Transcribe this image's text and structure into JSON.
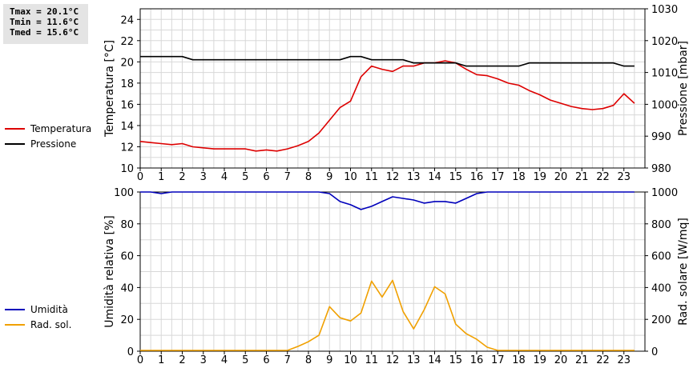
{
  "stats": {
    "tmax": "Tmax = 20.1°C",
    "tmin": "Tmin = 11.6°C",
    "tmed": "Tmed = 15.6°C"
  },
  "colors": {
    "temperature": "#dd0000",
    "pressure": "#000000",
    "humidity": "#0000bb",
    "radiation": "#f0a000",
    "grid": "#d8d8d8"
  },
  "chart_data": [
    {
      "type": "line",
      "ylabel": "Temperatura [°C]",
      "y2label": "Pressione [mbar]",
      "xlim": [
        0,
        24
      ],
      "xticks": [
        0,
        1,
        2,
        3,
        4,
        5,
        6,
        7,
        8,
        9,
        10,
        11,
        12,
        13,
        14,
        15,
        16,
        17,
        18,
        19,
        20,
        21,
        22,
        23
      ],
      "ylim": [
        10,
        25
      ],
      "yticks": [
        10,
        12,
        14,
        16,
        18,
        20,
        22,
        24
      ],
      "y2lim": [
        980,
        1030
      ],
      "y2ticks": [
        980,
        990,
        1000,
        1010,
        1020,
        1030
      ],
      "grid": true,
      "legend_position": "left",
      "series": [
        {
          "name": "Temperatura",
          "axis": "left",
          "x": [
            0,
            0.5,
            1,
            1.5,
            2,
            2.5,
            3,
            3.5,
            4,
            4.5,
            5,
            5.5,
            6,
            6.5,
            7,
            7.5,
            8,
            8.5,
            9,
            9.5,
            10,
            10.5,
            11,
            11.5,
            12,
            12.5,
            13,
            13.5,
            14,
            14.5,
            15,
            15.5,
            16,
            16.5,
            17,
            17.5,
            18,
            18.5,
            19,
            19.5,
            20,
            20.5,
            21,
            21.5,
            22,
            22.5,
            23,
            23.5
          ],
          "y": [
            12.5,
            12.4,
            12.3,
            12.2,
            12.3,
            12.0,
            11.9,
            11.8,
            11.8,
            11.8,
            11.8,
            11.6,
            11.7,
            11.6,
            11.8,
            12.1,
            12.5,
            13.3,
            14.5,
            15.7,
            16.3,
            18.6,
            19.6,
            19.3,
            19.1,
            19.6,
            19.6,
            19.9,
            19.9,
            20.1,
            19.9,
            19.3,
            18.8,
            18.7,
            18.4,
            18.0,
            17.8,
            17.3,
            16.9,
            16.4,
            16.1,
            15.8,
            15.6,
            15.5,
            15.6,
            15.9,
            17.0,
            16.1
          ]
        },
        {
          "name": "Pressione",
          "axis": "right",
          "x": [
            0,
            2,
            2.5,
            9.5,
            10,
            10.5,
            11,
            12.5,
            13,
            15,
            15.5,
            18,
            18.5,
            22.5,
            23,
            23.5
          ],
          "y": [
            1015,
            1015,
            1014,
            1014,
            1015,
            1015,
            1014,
            1014,
            1013,
            1013,
            1012,
            1012,
            1013,
            1013,
            1012,
            1012
          ]
        }
      ]
    },
    {
      "type": "line",
      "ylabel": "Umidità relativa [%]",
      "y2label": "Rad. solare [W/mq]",
      "xlim": [
        0,
        24
      ],
      "xticks": [
        0,
        1,
        2,
        3,
        4,
        5,
        6,
        7,
        8,
        9,
        10,
        11,
        12,
        13,
        14,
        15,
        16,
        17,
        18,
        19,
        20,
        21,
        22,
        23
      ],
      "ylim": [
        0,
        100
      ],
      "yticks": [
        0,
        20,
        40,
        60,
        80,
        100
      ],
      "y2lim": [
        0,
        1000
      ],
      "y2ticks": [
        0,
        200,
        400,
        600,
        800,
        1000
      ],
      "grid": true,
      "legend_position": "left",
      "series": [
        {
          "name": "Umidità",
          "axis": "left",
          "x": [
            0,
            0.5,
            1,
            1.5,
            2,
            8.5,
            9,
            9.5,
            10,
            10.5,
            11,
            11.5,
            12,
            12.5,
            13,
            13.5,
            14,
            14.5,
            15,
            15.5,
            16,
            16.5,
            23.5
          ],
          "y": [
            100,
            100,
            99,
            100,
            100,
            100,
            99,
            94,
            92,
            89,
            91,
            94,
            97,
            96,
            95,
            93,
            94,
            94,
            93,
            96,
            99,
            100,
            100
          ]
        },
        {
          "name": "Rad. sol.",
          "axis": "right",
          "x": [
            0,
            7,
            7.5,
            8,
            8.5,
            9,
            9.5,
            10,
            10.5,
            11,
            11.5,
            12,
            12.5,
            13,
            13.5,
            14,
            14.5,
            15,
            15.5,
            16,
            16.5,
            17,
            17.5,
            23.5
          ],
          "y": [
            5,
            5,
            30,
            60,
            100,
            280,
            210,
            190,
            240,
            440,
            340,
            445,
            250,
            140,
            260,
            405,
            360,
            170,
            110,
            75,
            25,
            5,
            5,
            5
          ]
        }
      ]
    }
  ]
}
